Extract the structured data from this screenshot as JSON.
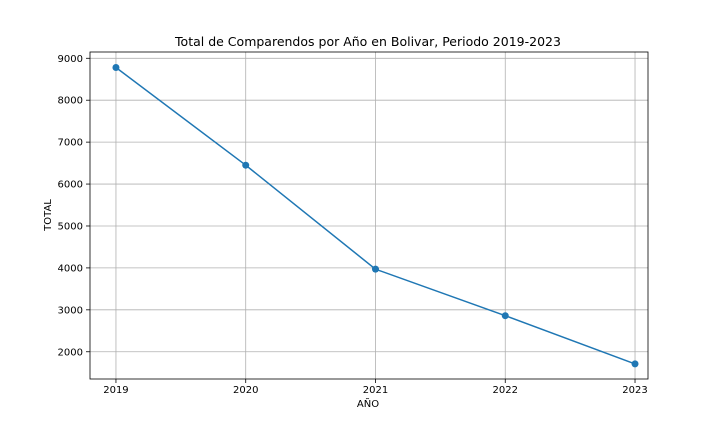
{
  "chart_data": {
    "type": "line",
    "title": "Total de Comparendos por Año en Bolivar, Periodo 2019-2023",
    "xlabel": "AÑO",
    "ylabel": "TOTAL",
    "x": [
      2019,
      2020,
      2021,
      2022,
      2023
    ],
    "x_tick_labels": [
      "2019",
      "2020",
      "2021",
      "2022",
      "2023"
    ],
    "y_ticks": [
      2000,
      3000,
      4000,
      5000,
      6000,
      7000,
      8000,
      9000
    ],
    "y_tick_labels": [
      "2000",
      "3000",
      "4000",
      "5000",
      "6000",
      "7000",
      "8000",
      "9000"
    ],
    "xlim": [
      2018.8,
      2023.1
    ],
    "ylim": [
      1350,
      9150
    ],
    "grid": true,
    "marker": "circle",
    "line_color": "#1f77b4",
    "series": [
      {
        "values": [
          8780,
          6450,
          3970,
          2860,
          1710
        ]
      }
    ]
  }
}
